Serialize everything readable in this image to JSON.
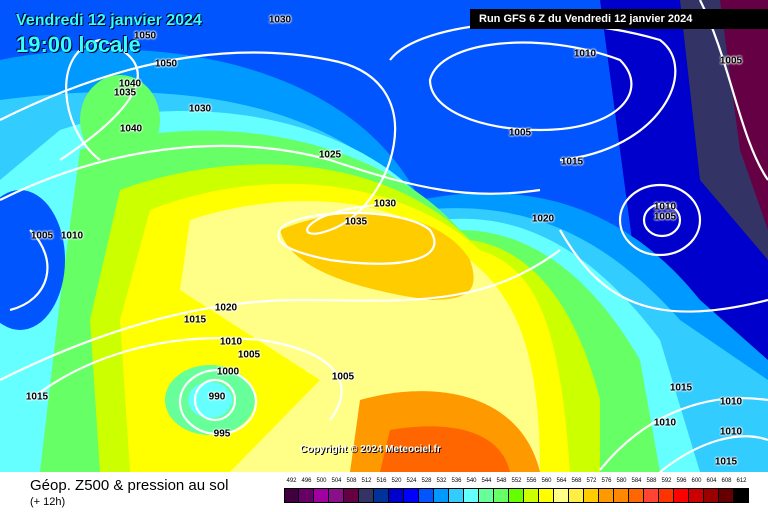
{
  "header": {
    "date": "Vendredi 12 janvier 2024",
    "time": "19:00 locale",
    "run": "Run GFS 6 Z du Vendredi 12 janvier 2024"
  },
  "copyright": "Copyright © 2024 Meteociel.fr",
  "footer": {
    "title": "Géop. Z500 & pression au sol",
    "subtitle": "(+ 12h)"
  },
  "scale": {
    "labels": [
      "492",
      "496",
      "500",
      "504",
      "508",
      "512",
      "516",
      "520",
      "524",
      "528",
      "532",
      "536",
      "540",
      "544",
      "548",
      "552",
      "556",
      "560",
      "564",
      "568",
      "572",
      "576",
      "580",
      "584",
      "588",
      "592",
      "596",
      "600",
      "604",
      "608",
      "612"
    ],
    "colors": [
      "#400040",
      "#660066",
      "#a000a0",
      "#881088",
      "#660044",
      "#333366",
      "#003399",
      "#0000cc",
      "#0000ff",
      "#0055ff",
      "#0099ff",
      "#33ccff",
      "#66ffff",
      "#66ff99",
      "#66ff66",
      "#66ff00",
      "#ccff00",
      "#ffff00",
      "#ffff88",
      "#ffee44",
      "#ffcc00",
      "#ff9900",
      "#ff8800",
      "#ff6600",
      "#ff4433",
      "#ff3300",
      "#ff0000",
      "#cc0000",
      "#990000",
      "#660000",
      "#000000"
    ]
  },
  "isobar_labels": [
    "1030",
    "1050",
    "1050",
    "1040",
    "1035",
    "1030",
    "1040",
    "1025",
    "1030",
    "1035",
    "1020",
    "1005",
    "1010",
    "1010",
    "1005",
    "1015",
    "1005",
    "1010",
    "1005",
    "1020",
    "1015",
    "1010",
    "1005",
    "1000",
    "990",
    "995",
    "1005",
    "1015",
    "1015",
    "1010",
    "1010",
    "1010",
    "1015"
  ]
}
